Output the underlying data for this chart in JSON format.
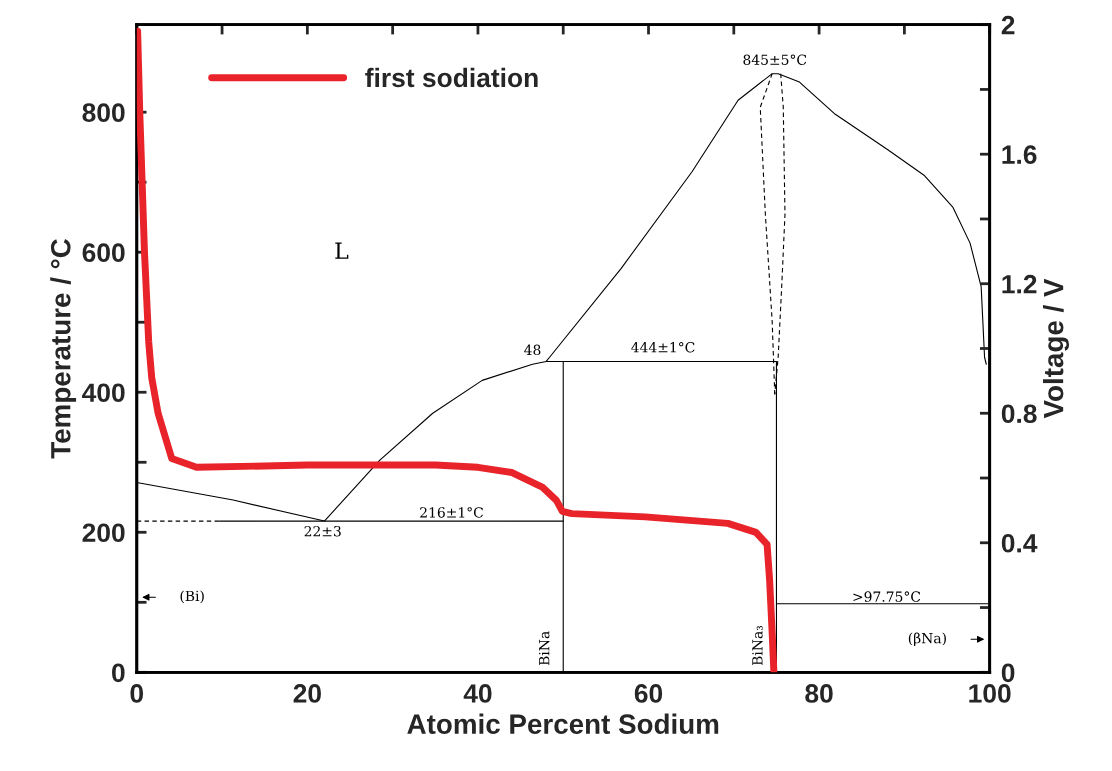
{
  "chart_data": {
    "type": "line",
    "xlabel": "Atomic Percent Sodium",
    "ylabel": "Temperature / °C",
    "y2label": "Voltage / V",
    "xlim": [
      0,
      100
    ],
    "xticks": [
      0,
      {
        "value": 10,
        "label": null
      },
      20,
      {
        "value": 30,
        "label": null
      },
      40,
      {
        "value": 50,
        "label": null
      },
      60,
      {
        "value": 70,
        "label": null
      },
      80,
      {
        "value": 90,
        "label": null
      },
      100
    ],
    "ylim": [
      0,
      925
    ],
    "yticks": [
      0,
      {
        "value": 100,
        "label": null
      },
      200,
      {
        "value": 300,
        "label": null
      },
      400,
      {
        "value": 500,
        "label": null
      },
      600,
      {
        "value": 700,
        "label": null
      },
      800
    ],
    "y2lim": [
      0,
      2
    ],
    "y2ticks": [
      0,
      {
        "value": 0.2,
        "label": null
      },
      0.4,
      {
        "value": 0.6,
        "label": null
      },
      0.8,
      {
        "value": 1.0,
        "label": null
      },
      1.2,
      {
        "value": 1.4,
        "label": null
      },
      1.6,
      {
        "value": 1.8,
        "label": null
      },
      2
    ],
    "grid": false,
    "legend": "top left",
    "series": [
      {
        "color": "#000000",
        "line_style": "solid",
        "x": [
          0,
          11.3,
          22,
          28.5,
          34.7,
          40.5,
          46.4,
          48,
          48.4,
          56.8,
          65.1,
          70.5,
          74.5,
          75.2,
          77.7,
          81.9,
          88.1,
          92.3,
          95.7,
          97.7,
          99,
          99.4,
          99.6
        ],
        "values": [
          271,
          246,
          216,
          303,
          370,
          417,
          440,
          444,
          450,
          577,
          715,
          817,
          855,
          855,
          843,
          797,
          746,
          710,
          664,
          613,
          551,
          450,
          440
        ]
      },
      {
        "color": "#000000",
        "line_style": "dashed",
        "x": [
          74.8,
          74.5,
          73.7,
          73.1,
          74.5
        ],
        "values": [
          397,
          501,
          654,
          807,
          855
        ]
      },
      {
        "color": "#000000",
        "line_style": "dashed",
        "x": [
          75.5,
          75.8,
          76,
          75.6,
          75.2,
          74.8
        ],
        "values": [
          855,
          807,
          654,
          547,
          450,
          397
        ]
      },
      {
        "color": "#000000",
        "line_style": "dashed",
        "x": [
          0,
          9.7
        ],
        "values": [
          216,
          216
        ]
      },
      {
        "color": "#000000",
        "line_style": "solid",
        "x": [
          9.7,
          50
        ],
        "values": [
          216,
          216
        ]
      },
      {
        "color": "#000000",
        "line_style": "solid",
        "x": [
          50,
          50
        ],
        "values": [
          0,
          444
        ]
      },
      {
        "color": "#000000",
        "line_style": "solid",
        "x": [
          48,
          75
        ],
        "values": [
          444,
          444
        ]
      },
      {
        "color": "#000000",
        "line_style": "solid",
        "x": [
          75,
          75
        ],
        "values": [
          0,
          444
        ]
      },
      {
        "color": "#000000",
        "line_style": "solid",
        "x": [
          75,
          100
        ],
        "values": [
          98,
          98
        ]
      },
      {
        "name": "first sodiation",
        "color": "#e8232a",
        "line_style": "solid",
        "axis": "y2",
        "x": [
          0.1,
          0.35,
          0.9,
          1.4,
          1.75,
          2.5,
          4.1,
          7,
          20,
          35,
          40,
          44,
          47.6,
          49.2,
          49.9,
          51,
          59.6,
          69.3,
          72.6,
          73.9,
          74.2,
          74.5,
          74.7
        ],
        "values": [
          1.98,
          1.73,
          1.3,
          1.02,
          0.91,
          0.8,
          0.66,
          0.633,
          0.64,
          0.64,
          0.633,
          0.617,
          0.571,
          0.531,
          0.497,
          0.49,
          0.48,
          0.46,
          0.432,
          0.395,
          0.284,
          0.12,
          0
        ]
      }
    ],
    "annotations": [
      "L",
      "845±5°C",
      "444±1°C",
      "48",
      "216±1°C",
      "22±3",
      ">97.75°C",
      "(Bi)",
      "(βNa)",
      {
        "text": "BiNa",
        "x": 50
      },
      {
        "text": "BiNa₃",
        "x": 75
      }
    ]
  }
}
